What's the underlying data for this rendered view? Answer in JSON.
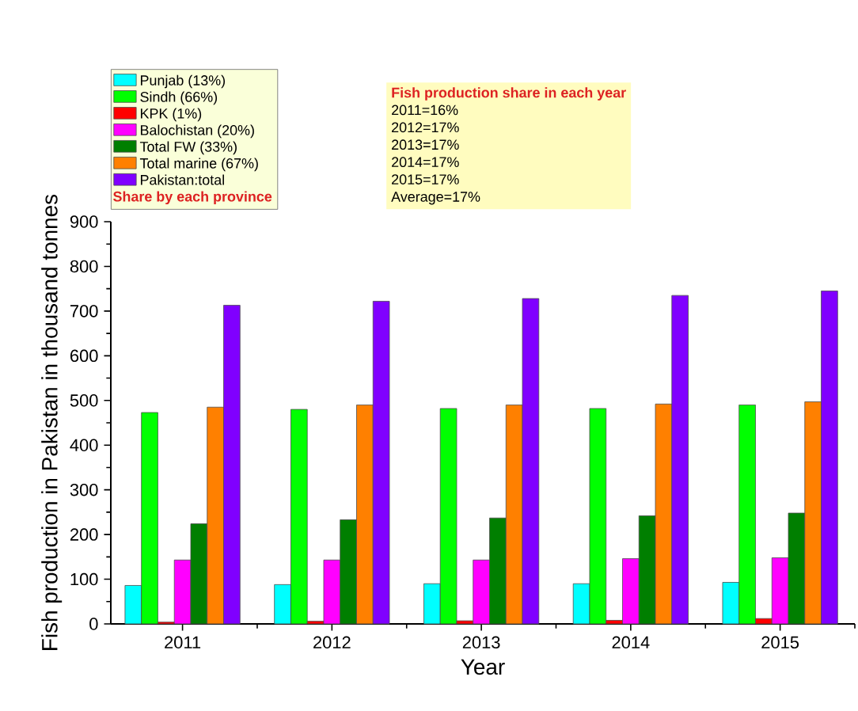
{
  "chart_data": {
    "type": "bar",
    "xlabel": "Year",
    "ylabel": "Fish production in Pakistan in thousand tonnes",
    "legend_title": "Share by each province",
    "categories": [
      "2011",
      "2012",
      "2013",
      "2014",
      "2015"
    ],
    "series": [
      {
        "name": "Punjab   (13%)",
        "color": "#00ffff",
        "values": [
          86,
          88,
          90,
          90,
          93
        ]
      },
      {
        "name": "Sindh   (66%)",
        "color": "#00ff00",
        "values": [
          473,
          480,
          482,
          482,
          490
        ]
      },
      {
        "name": "KPK (1%)",
        "color": "#ff0000",
        "values": [
          4,
          6,
          7,
          8,
          12
        ]
      },
      {
        "name": "Balochistan (20%)",
        "color": "#ff00ff",
        "values": [
          143,
          143,
          143,
          146,
          148
        ]
      },
      {
        "name": "Total FW (33%)",
        "color": "#007f00",
        "values": [
          224,
          233,
          237,
          242,
          248
        ]
      },
      {
        "name": "Total marine (67%)",
        "color": "#ff8000",
        "values": [
          485,
          490,
          490,
          492,
          497
        ]
      },
      {
        "name": "Pakistan:total",
        "color": "#8000ff",
        "values": [
          713,
          722,
          728,
          735,
          745
        ]
      }
    ],
    "ylim": [
      0,
      900
    ],
    "yticks": [
      0,
      100,
      200,
      300,
      400,
      500,
      600,
      700,
      800,
      900
    ],
    "grid": false,
    "legend": "top left",
    "annotations": [
      "Fish production share in each year",
      "2011=16%",
      "2012=17%",
      "2013=17%",
      "2014=17%",
      "2015=17%",
      "Average=17%"
    ]
  }
}
